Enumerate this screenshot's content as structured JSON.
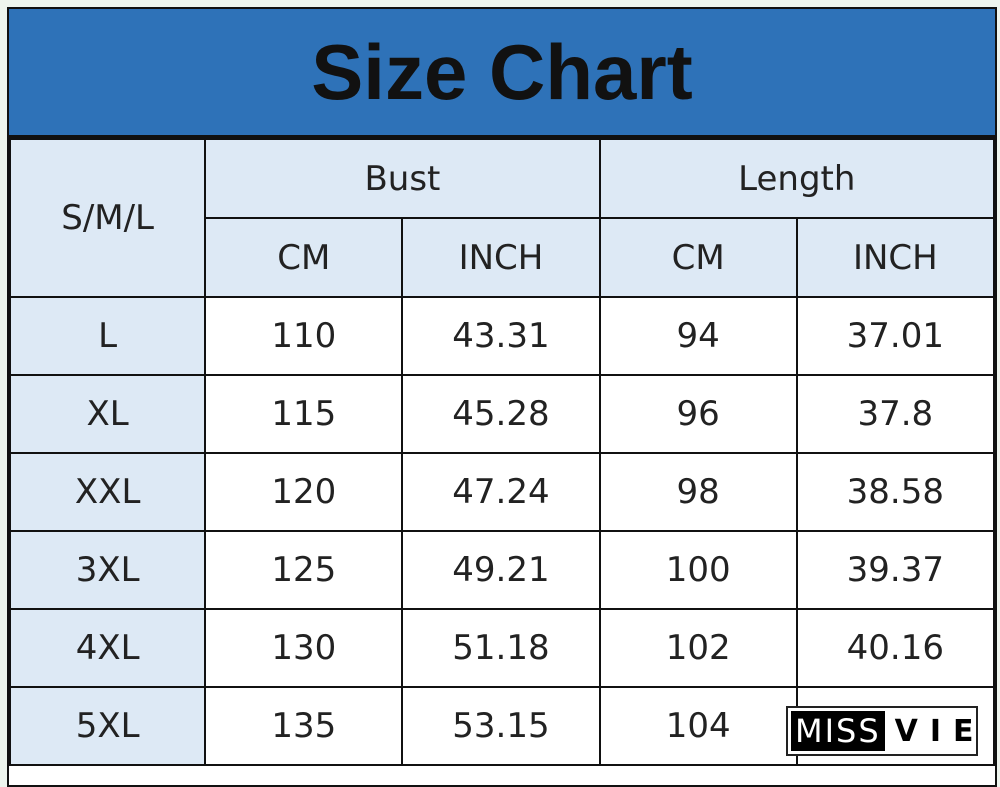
{
  "title": "Size Chart",
  "header": {
    "size_label": "S/M/L",
    "groups": [
      "Bust",
      "Length"
    ],
    "units": [
      "CM",
      "INCH",
      "CM",
      "INCH"
    ]
  },
  "rows": [
    {
      "size": "L",
      "bust_cm": "110",
      "bust_inch": "43.31",
      "length_cm": "94",
      "length_inch": "37.01"
    },
    {
      "size": "XL",
      "bust_cm": "115",
      "bust_inch": "45.28",
      "length_cm": "96",
      "length_inch": "37.8"
    },
    {
      "size": "XXL",
      "bust_cm": "120",
      "bust_inch": "47.24",
      "length_cm": "98",
      "length_inch": "38.58"
    },
    {
      "size": "3XL",
      "bust_cm": "125",
      "bust_inch": "49.21",
      "length_cm": "100",
      "length_inch": "39.37"
    },
    {
      "size": "4XL",
      "bust_cm": "130",
      "bust_inch": "51.18",
      "length_cm": "102",
      "length_inch": "40.16"
    },
    {
      "size": "5XL",
      "bust_cm": "135",
      "bust_inch": "53.15",
      "length_cm": "104",
      "length_inch": ""
    }
  ],
  "watermark": {
    "left": "MISS",
    "right": "VIE"
  },
  "colors": {
    "title_bg": "#2e72b8",
    "header_bg": "#dde9f5",
    "border": "#111111"
  }
}
